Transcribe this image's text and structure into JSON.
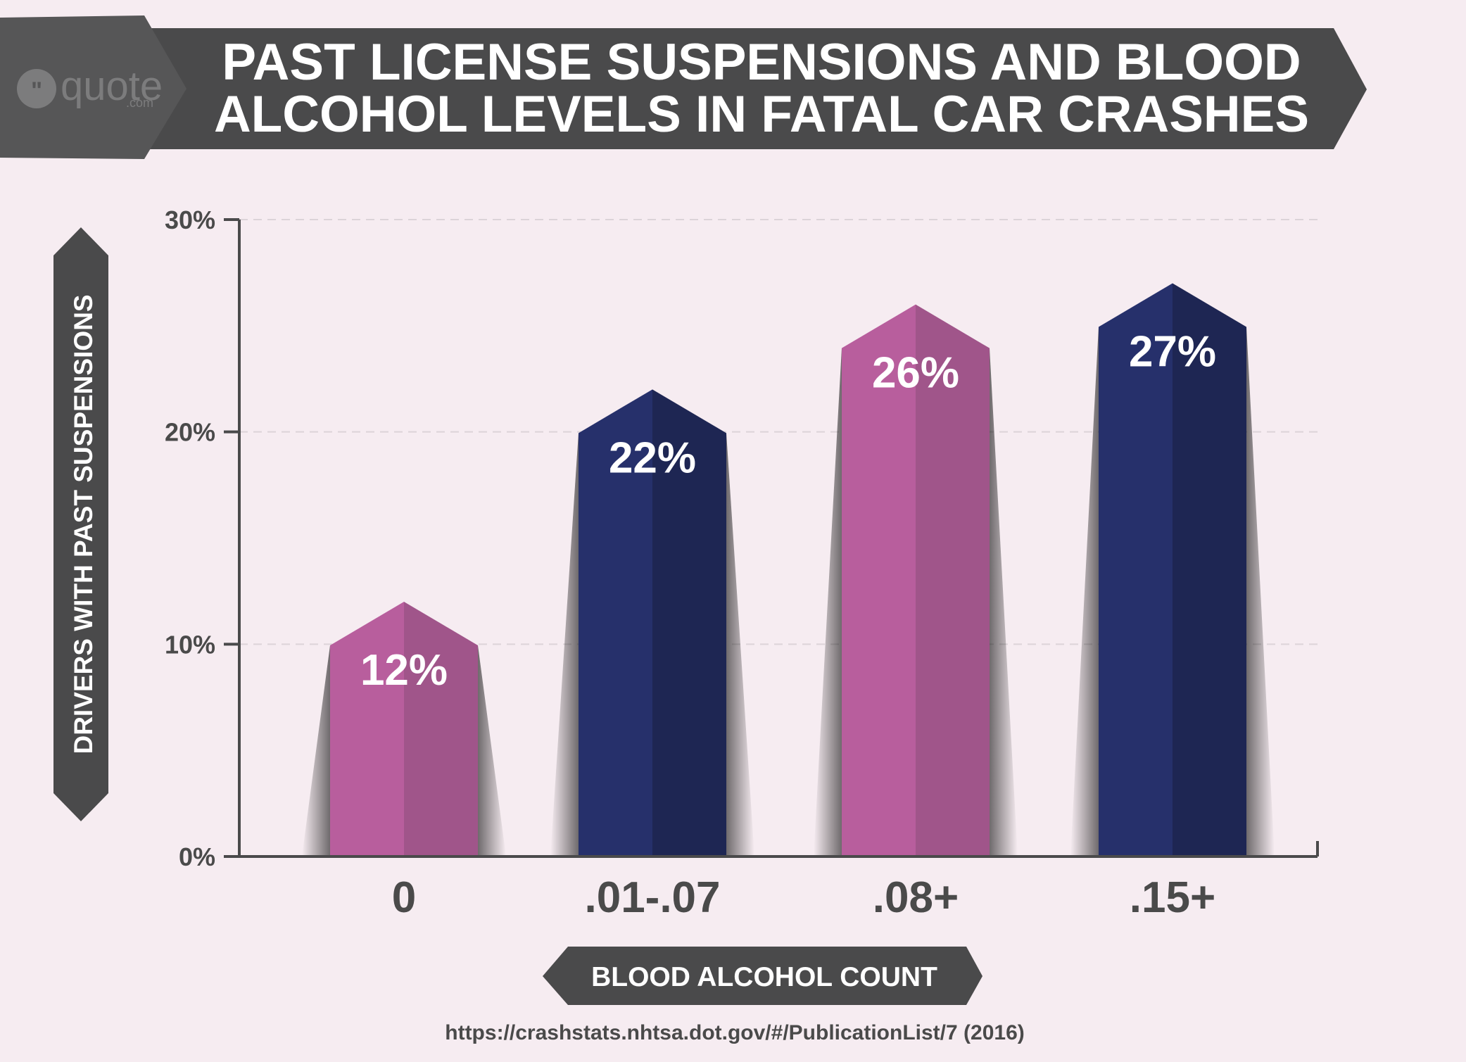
{
  "logo": {
    "brand": "quote",
    "suffix": ".com"
  },
  "title": {
    "line1": "PAST LICENSE SUSPENSIONS AND BLOOD",
    "line2": "ALCOHOL LEVELS IN FATAL CAR CRASHES"
  },
  "source": "https://crashstats.nhtsa.dot.gov/#/PublicationList/7 (2016)",
  "colors": {
    "pink": "#b85e9d",
    "pink_dark": "#a0558a",
    "navy": "#26306b",
    "navy_dark": "#1e2653",
    "banner": "#4a4a4b",
    "text": "#4a4a4a"
  },
  "chart_data": {
    "type": "bar",
    "title": "PAST LICENSE SUSPENSIONS AND BLOOD ALCOHOL LEVELS IN FATAL CAR CRASHES",
    "xlabel": "BLOOD ALCOHOL COUNT",
    "ylabel": "DRIVERS WITH PAST SUSPENSIONS",
    "categories": [
      "0",
      ".01-.07",
      ".08+",
      ".15+"
    ],
    "values": [
      12,
      22,
      26,
      27
    ],
    "value_labels": [
      "12%",
      "22%",
      "26%",
      "27%"
    ],
    "bar_colors": [
      "pink",
      "navy",
      "pink",
      "navy"
    ],
    "ylim": [
      0,
      30
    ],
    "yticks": [
      0,
      10,
      20,
      30
    ],
    "ytick_labels": [
      "0%",
      "10%",
      "20%",
      "30%"
    ],
    "grid": true
  }
}
